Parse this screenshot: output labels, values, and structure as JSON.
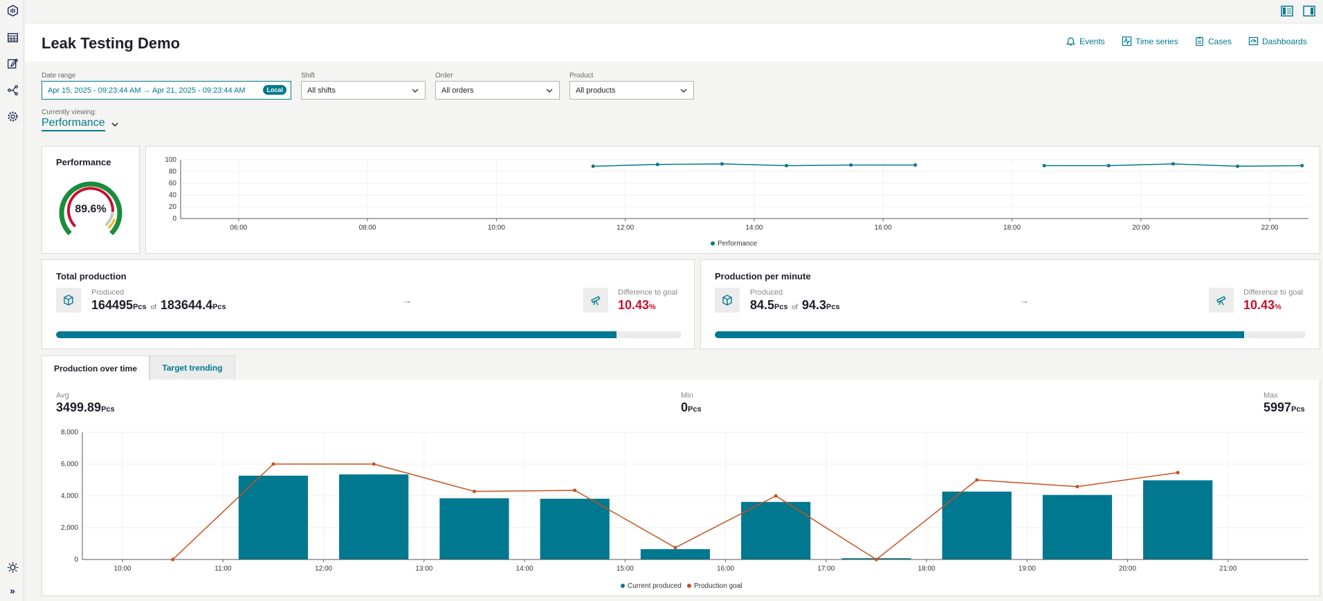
{
  "header": {
    "title": "Leak Testing Demo",
    "nav": [
      {
        "label": "Events",
        "icon": "bell-icon"
      },
      {
        "label": "Time series",
        "icon": "timeseries-icon"
      },
      {
        "label": "Cases",
        "icon": "clipboard-icon"
      },
      {
        "label": "Dashboards",
        "icon": "dashboard-icon"
      }
    ]
  },
  "sidebar": {
    "items": [
      {
        "icon": "app-logo-icon"
      },
      {
        "icon": "calendar-grid-icon"
      },
      {
        "icon": "edit-icon"
      },
      {
        "icon": "share-nodes-icon"
      },
      {
        "icon": "gear-icon"
      }
    ],
    "bottom": [
      {
        "icon": "sun-icon"
      },
      {
        "icon": "expand-icon",
        "label": "»"
      }
    ]
  },
  "filters": {
    "date": {
      "label": "Date range",
      "value": "Apr 15, 2025 - 09:23:44 AM → Apr 21, 2025 - 09:23:44 AM",
      "badge": "Local"
    },
    "shift": {
      "label": "Shift",
      "value": "All shifts"
    },
    "order": {
      "label": "Order",
      "value": "All orders"
    },
    "product": {
      "label": "Product",
      "value": "All products"
    }
  },
  "viewing": {
    "label": "Currently viewing:",
    "value": "Performance"
  },
  "performance": {
    "title": "Performance",
    "value": "89.6%",
    "level": 0.896
  },
  "perf_chart": {
    "type": "line",
    "x_ticks": [
      "06:00",
      "08:00",
      "10:00",
      "12:00",
      "14:00",
      "16:00",
      "18:00",
      "20:00",
      "22:00"
    ],
    "y_ticks": [
      "0",
      "20",
      "40",
      "60",
      "80",
      "100"
    ],
    "ylim": [
      0,
      100
    ],
    "legend": "Performance",
    "color": "#00788f",
    "segments": [
      [
        [
          "11:30",
          89
        ],
        [
          "12:30",
          92
        ],
        [
          "13:30",
          93
        ],
        [
          "14:30",
          90
        ],
        [
          "15:30",
          91
        ],
        [
          "16:30",
          91
        ]
      ],
      [
        [
          "18:30",
          90
        ],
        [
          "19:30",
          90
        ],
        [
          "20:30",
          93
        ],
        [
          "21:30",
          89
        ],
        [
          "22:30",
          90
        ]
      ]
    ]
  },
  "total_production": {
    "title": "Total production",
    "produced_label": "Produced",
    "produced": "164495",
    "goal": "183644.4",
    "unit": "Pcs",
    "of": "of",
    "arrow": "→",
    "diff_label": "Difference to goal",
    "diff": "10.43",
    "diff_unit": "%",
    "progress": 0.896
  },
  "production_per_minute": {
    "title": "Production per minute",
    "produced_label": "Produced",
    "produced": "84.5",
    "goal": "94.3",
    "unit": "Pcs",
    "of": "of",
    "arrow": "→",
    "diff_label": "Difference to goal",
    "diff": "10.43",
    "diff_unit": "%",
    "progress": 0.896
  },
  "tabs": [
    {
      "label": "Production over time",
      "active": true
    },
    {
      "label": "Target trending",
      "active": false
    }
  ],
  "summary": {
    "avg": {
      "label": "Avg",
      "value": "3499.89",
      "unit": "Pcs"
    },
    "min": {
      "label": "Min",
      "value": "0",
      "unit": "Pcs"
    },
    "max": {
      "label": "Max",
      "value": "5997",
      "unit": "Pcs"
    }
  },
  "chart_data": {
    "type": "bar",
    "x_ticks": [
      "10:00",
      "11:00",
      "12:00",
      "13:00",
      "14:00",
      "15:00",
      "16:00",
      "17:00",
      "18:00",
      "19:00",
      "20:00",
      "21:00"
    ],
    "y_ticks": [
      "0",
      "2,000",
      "4,000",
      "6,000",
      "8,000"
    ],
    "ylim": [
      0,
      8000
    ],
    "series": [
      {
        "name": "Current produced",
        "type": "bar",
        "color": "#00788f",
        "points": [
          [
            "11:30",
            5270
          ],
          [
            "12:30",
            5350
          ],
          [
            "13:30",
            3850
          ],
          [
            "14:30",
            3820
          ],
          [
            "15:30",
            650
          ],
          [
            "16:30",
            3620
          ],
          [
            "17:30",
            80
          ],
          [
            "18:30",
            4270
          ],
          [
            "19:30",
            4060
          ],
          [
            "20:30",
            4980
          ]
        ]
      },
      {
        "name": "Production goal",
        "type": "line",
        "color": "#c8501e",
        "points": [
          [
            "10:30",
            0
          ],
          [
            "11:30",
            6000
          ],
          [
            "12:30",
            6000
          ],
          [
            "13:30",
            4280
          ],
          [
            "14:30",
            4350
          ],
          [
            "15:30",
            750
          ],
          [
            "16:30",
            4000
          ],
          [
            "17:30",
            0
          ],
          [
            "18:30",
            5000
          ],
          [
            "19:30",
            4580
          ],
          [
            "20:30",
            5460
          ]
        ]
      }
    ],
    "legend": "bottom-center"
  }
}
